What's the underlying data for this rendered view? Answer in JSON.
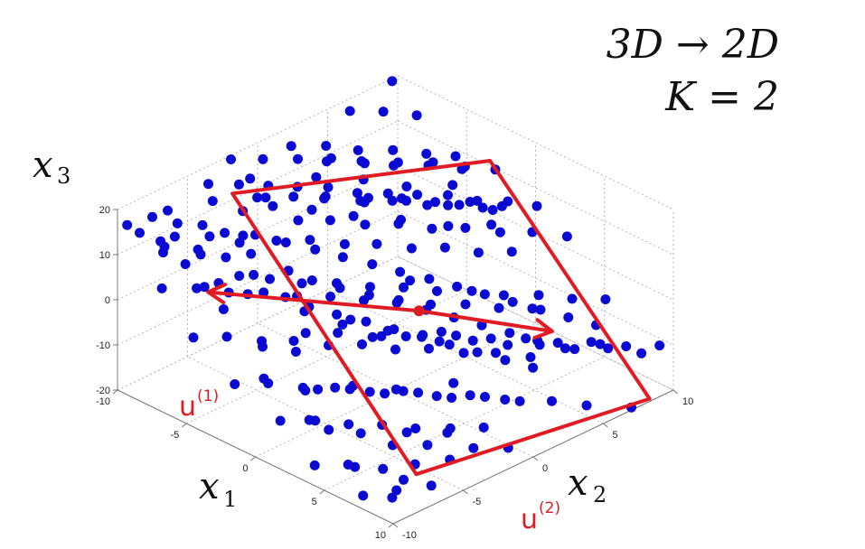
{
  "chart_data": {
    "type": "scatter",
    "title_lines": [
      "3D → 2D",
      "K = 2"
    ],
    "xlabel": {
      "var": "x",
      "sub": "1"
    },
    "ylabel": {
      "var": "x",
      "sub": "2"
    },
    "zlabel": {
      "var": "x",
      "sub": "3"
    },
    "xlim": [
      -10,
      10
    ],
    "ylim": [
      -10,
      10
    ],
    "zlim": [
      -20,
      20
    ],
    "x_ticks": [
      "-10",
      "-5",
      "0",
      "5",
      "10"
    ],
    "y_ticks": [
      "-10",
      "-5",
      "0",
      "5",
      "10"
    ],
    "z_ticks": [
      "-20",
      "-10",
      "0",
      "10",
      "20"
    ],
    "grid": true,
    "point_color": "#0a0ad2",
    "annotation_color": "#e01b24",
    "annotations": {
      "u1": {
        "base": "u",
        "sup": "(1)"
      },
      "u2": {
        "base": "u",
        "sup": "(2)"
      }
    },
    "points": [
      [
        -9.5,
        -9.8,
        17
      ],
      [
        -9.2,
        -8.3,
        17
      ],
      [
        -8.8,
        -9.6,
        16
      ],
      [
        -8.5,
        -7.2,
        15
      ],
      [
        -8.1,
        -8.8,
        14
      ],
      [
        -7.8,
        -6.1,
        14
      ],
      [
        -7.5,
        -9.2,
        13
      ],
      [
        -7.1,
        -5.2,
        12
      ],
      [
        -6.8,
        -7.4,
        12
      ],
      [
        -6.5,
        -8.6,
        11
      ],
      [
        -6.2,
        -3.9,
        11
      ],
      [
        -5.9,
        -6.3,
        10
      ],
      [
        -5.6,
        -4.8,
        9
      ],
      [
        -5.2,
        -2.7,
        9
      ],
      [
        -4.9,
        -7.8,
        8
      ],
      [
        -4.6,
        -5.6,
        7
      ],
      [
        -4.3,
        -1.5,
        7
      ],
      [
        -4.0,
        -3.7,
        6
      ],
      [
        -3.7,
        -6.9,
        6
      ],
      [
        -3.4,
        -0.4,
        5
      ],
      [
        -3.1,
        -2.9,
        4
      ],
      [
        -2.8,
        -5.1,
        4
      ],
      [
        -2.5,
        0.8,
        3
      ],
      [
        -2.2,
        -1.8,
        2
      ],
      [
        -1.9,
        -4.3,
        2
      ],
      [
        -1.6,
        1.9,
        1
      ],
      [
        -1.3,
        -0.6,
        0
      ],
      [
        -1.0,
        -3.2,
        0
      ],
      [
        -0.7,
        3.1,
        -1
      ],
      [
        -0.4,
        0.5,
        -2
      ],
      [
        -0.1,
        -2.0,
        -2
      ],
      [
        0.2,
        4.2,
        -3
      ],
      [
        0.5,
        1.7,
        -4
      ],
      [
        0.8,
        -0.9,
        -4
      ],
      [
        1.1,
        5.3,
        -5
      ],
      [
        1.4,
        2.8,
        -6
      ],
      [
        1.7,
        0.2,
        -6
      ],
      [
        2.0,
        6.4,
        -7
      ],
      [
        2.3,
        3.9,
        -8
      ],
      [
        2.6,
        1.3,
        -8
      ],
      [
        2.9,
        7.5,
        -9
      ],
      [
        3.2,
        5.0,
        -10
      ],
      [
        3.5,
        2.4,
        -10
      ],
      [
        3.8,
        8.6,
        -11
      ],
      [
        4.1,
        6.1,
        -12
      ],
      [
        4.4,
        3.5,
        -12
      ],
      [
        4.7,
        9.7,
        -13
      ],
      [
        5.0,
        7.2,
        -14
      ],
      [
        5.3,
        4.6,
        -14
      ],
      [
        5.6,
        9.1,
        -15
      ],
      [
        -9.0,
        -4.5,
        19
      ],
      [
        -8.2,
        -3.1,
        18
      ],
      [
        -7.4,
        -1.8,
        17
      ],
      [
        -6.6,
        -0.5,
        16
      ],
      [
        -5.8,
        0.9,
        15
      ],
      [
        -5.0,
        2.2,
        13
      ],
      [
        -4.2,
        3.6,
        12
      ],
      [
        -3.4,
        4.9,
        11
      ],
      [
        -2.6,
        6.3,
        10
      ],
      [
        -1.8,
        7.6,
        8
      ],
      [
        -1.0,
        9.0,
        7
      ],
      [
        -8.6,
        -1.4,
        12
      ],
      [
        -7.7,
        0.3,
        11
      ],
      [
        -6.9,
        1.8,
        10
      ],
      [
        -6.0,
        3.4,
        8
      ],
      [
        -5.2,
        4.9,
        7
      ],
      [
        -4.3,
        6.5,
        5
      ],
      [
        -3.5,
        8.0,
        4
      ],
      [
        -2.6,
        9.5,
        2
      ],
      [
        -9.3,
        -6.6,
        10
      ],
      [
        -8.4,
        -5.0,
        9
      ],
      [
        -7.6,
        -3.4,
        8
      ],
      [
        -6.7,
        -1.9,
        6
      ],
      [
        -5.9,
        -0.3,
        5
      ],
      [
        -5.0,
        1.3,
        3
      ],
      [
        -4.2,
        2.8,
        2
      ],
      [
        -3.3,
        4.4,
        0
      ],
      [
        -2.5,
        6.0,
        -1
      ],
      [
        -1.6,
        7.5,
        -3
      ],
      [
        -0.8,
        9.1,
        -4
      ],
      [
        -7.9,
        -8.9,
        4
      ],
      [
        -7.0,
        -7.3,
        3
      ],
      [
        -6.2,
        -5.8,
        1
      ],
      [
        -5.3,
        -4.2,
        0
      ],
      [
        -4.5,
        -2.6,
        -2
      ],
      [
        -3.6,
        -1.1,
        -3
      ],
      [
        -2.8,
        0.5,
        -5
      ],
      [
        -1.9,
        2.1,
        -6
      ],
      [
        -1.1,
        3.6,
        -8
      ],
      [
        -0.2,
        5.2,
        -9
      ],
      [
        0.6,
        6.8,
        -11
      ],
      [
        1.5,
        8.3,
        -12
      ],
      [
        -5.1,
        -9.4,
        -2
      ],
      [
        -4.3,
        -7.8,
        -3
      ],
      [
        -3.4,
        -6.2,
        -5
      ],
      [
        -2.6,
        -4.7,
        -6
      ],
      [
        -1.7,
        -3.1,
        -8
      ],
      [
        -0.9,
        -1.5,
        -9
      ],
      [
        0.0,
        0.0,
        -11
      ],
      [
        0.8,
        1.6,
        -12
      ],
      [
        1.7,
        3.2,
        -14
      ],
      [
        2.5,
        4.7,
        -15
      ],
      [
        3.4,
        6.3,
        -17
      ],
      [
        -1.8,
        -9.7,
        -7
      ],
      [
        -1.0,
        -8.1,
        -8
      ],
      [
        -0.1,
        -6.5,
        -10
      ],
      [
        0.7,
        -5.0,
        -11
      ],
      [
        1.6,
        -3.4,
        -13
      ],
      [
        2.4,
        -1.8,
        -14
      ],
      [
        3.3,
        -0.3,
        -16
      ],
      [
        4.1,
        1.3,
        -17
      ],
      [
        5.0,
        2.9,
        -19
      ],
      [
        0.9,
        -9.1,
        -12
      ],
      [
        1.8,
        -7.5,
        -13
      ],
      [
        2.6,
        -5.9,
        -15
      ],
      [
        3.5,
        -4.4,
        -16
      ],
      [
        4.3,
        -2.8,
        -18
      ],
      [
        5.2,
        -1.2,
        -19
      ],
      [
        6.0,
        0.4,
        -20
      ],
      [
        3.8,
        -9.5,
        -17
      ],
      [
        4.6,
        -7.9,
        -18
      ],
      [
        5.5,
        -6.3,
        -20
      ],
      [
        6.3,
        -4.8,
        -20
      ],
      [
        7.2,
        -3.2,
        -20
      ],
      [
        6.8,
        -9.0,
        -20
      ],
      [
        7.6,
        -7.4,
        -20
      ],
      [
        8.5,
        -5.8,
        -20
      ],
      [
        -9.7,
        -2.2,
        20
      ],
      [
        -8.9,
        -0.7,
        19
      ],
      [
        -8.0,
        0.9,
        18
      ],
      [
        -7.2,
        2.5,
        17
      ],
      [
        -6.3,
        4.0,
        15
      ],
      [
        -5.5,
        5.6,
        14
      ],
      [
        -4.6,
        7.2,
        13
      ],
      [
        -3.8,
        8.7,
        11
      ],
      [
        -9.9,
        2.3,
        16
      ],
      [
        -9.0,
        3.9,
        15
      ],
      [
        -8.2,
        5.4,
        13
      ],
      [
        -7.3,
        7.0,
        12
      ],
      [
        -6.5,
        8.6,
        10
      ],
      [
        -5.6,
        9.8,
        9
      ],
      [
        -9.4,
        6.0,
        19
      ],
      [
        -8.5,
        7.5,
        18
      ],
      [
        -7.7,
        9.1,
        16
      ],
      [
        -9.8,
        9.4,
        20
      ],
      [
        -2.0,
        -7.0,
        12
      ],
      [
        -1.2,
        -5.5,
        10
      ],
      [
        -0.3,
        -3.9,
        9
      ],
      [
        0.5,
        -2.3,
        7
      ],
      [
        1.4,
        -0.8,
        6
      ],
      [
        2.2,
        0.8,
        4
      ],
      [
        3.1,
        2.4,
        3
      ],
      [
        3.9,
        3.9,
        1
      ],
      [
        4.8,
        5.5,
        0
      ],
      [
        5.6,
        7.1,
        -2
      ],
      [
        6.5,
        8.6,
        -3
      ],
      [
        0.3,
        -6.7,
        3
      ],
      [
        1.1,
        -5.2,
        2
      ],
      [
        2.0,
        -3.6,
        0
      ],
      [
        2.8,
        -2.0,
        -1
      ],
      [
        3.7,
        -0.5,
        -3
      ],
      [
        4.5,
        1.1,
        -4
      ],
      [
        5.4,
        2.7,
        -6
      ],
      [
        6.2,
        4.2,
        -7
      ],
      [
        7.1,
        5.8,
        -9
      ],
      [
        7.9,
        7.4,
        -10
      ],
      [
        8.8,
        8.9,
        -12
      ],
      [
        2.6,
        -8.1,
        -4
      ],
      [
        3.4,
        -6.6,
        -5
      ],
      [
        4.3,
        -5.0,
        -7
      ],
      [
        5.1,
        -3.4,
        -8
      ],
      [
        6.0,
        -1.9,
        -10
      ],
      [
        6.8,
        -0.3,
        -11
      ],
      [
        7.7,
        1.3,
        -13
      ],
      [
        8.5,
        2.8,
        -14
      ],
      [
        9.4,
        4.4,
        -16
      ],
      [
        9.8,
        7.2,
        -20
      ],
      [
        -3.7,
        -3.3,
        17
      ],
      [
        -2.9,
        -1.8,
        16
      ],
      [
        -2.0,
        -0.2,
        14
      ],
      [
        -1.2,
        1.4,
        13
      ],
      [
        -0.3,
        2.9,
        11
      ],
      [
        0.5,
        4.5,
        10
      ],
      [
        1.4,
        6.1,
        8
      ],
      [
        2.2,
        7.6,
        7
      ],
      [
        3.1,
        9.2,
        5
      ],
      [
        -6.1,
        1.1,
        20
      ],
      [
        -5.2,
        2.7,
        19
      ],
      [
        -4.4,
        4.2,
        17
      ],
      [
        -3.5,
        5.8,
        16
      ],
      [
        -2.7,
        7.4,
        14
      ],
      [
        -1.8,
        8.9,
        13
      ],
      [
        -0.9,
        -8.6,
        1
      ],
      [
        0.0,
        -7.1,
        -1
      ],
      [
        1.9,
        -8.3,
        -5
      ],
      [
        4.0,
        -8.7,
        -10
      ],
      [
        6.1,
        -6.2,
        -14
      ],
      [
        7.0,
        -4.6,
        -15
      ],
      [
        8.2,
        -2.5,
        -17
      ],
      [
        9.1,
        -0.9,
        -18
      ],
      [
        -7.9,
        -2.6,
        19
      ],
      [
        -6.4,
        -4.6,
        17
      ],
      [
        -4.8,
        -6.4,
        15
      ],
      [
        -3.0,
        -8.2,
        13
      ],
      [
        -8.7,
        2.9,
        10
      ],
      [
        -7.5,
        5.1,
        8
      ],
      [
        -6.1,
        6.8,
        6
      ],
      [
        -4.9,
        8.9,
        5
      ],
      [
        -2.3,
        3.3,
        -4
      ],
      [
        -0.5,
        -8.9,
        -5
      ],
      [
        2.9,
        -9.0,
        -9
      ],
      [
        5.7,
        -8.5,
        -16
      ],
      [
        8.0,
        -8.1,
        -20
      ],
      [
        -9.6,
        -3.6,
        13
      ],
      [
        -8.3,
        -1.1,
        12
      ],
      [
        -6.8,
        1.6,
        10
      ],
      [
        -5.4,
        3.1,
        9
      ],
      [
        -4.7,
        5.4,
        7
      ],
      [
        -3.2,
        6.9,
        6
      ],
      [
        -2.1,
        8.3,
        5
      ],
      [
        -1.4,
        -2.4,
        -4
      ],
      [
        0.2,
        -1.2,
        -6
      ],
      [
        1.0,
        2.3,
        -9
      ],
      [
        1.9,
        -4.9,
        -9
      ],
      [
        2.7,
        -2.6,
        -12
      ],
      [
        3.6,
        0.6,
        -14
      ],
      [
        4.4,
        -6.8,
        -13
      ],
      [
        5.3,
        -4.4,
        -15
      ],
      [
        6.1,
        -2.3,
        -17
      ],
      [
        7.4,
        -6.7,
        -19
      ],
      [
        -8.8,
        -7.6,
        18
      ],
      [
        -7.2,
        -9.4,
        15
      ],
      [
        -6.0,
        -8.0,
        13
      ],
      [
        -4.1,
        -9.6,
        11
      ],
      [
        -2.4,
        -9.9,
        9
      ],
      [
        -9.1,
        0.2,
        7
      ],
      [
        -8.1,
        2.0,
        5
      ],
      [
        -6.8,
        3.7,
        3
      ],
      [
        -5.5,
        5.8,
        1
      ],
      [
        -4.0,
        7.7,
        -1
      ],
      [
        -2.9,
        9.7,
        -2
      ],
      [
        -0.7,
        -5.8,
        5
      ],
      [
        0.9,
        -4.1,
        3
      ],
      [
        2.4,
        -2.9,
        1
      ],
      [
        3.3,
        -1.3,
        -1
      ],
      [
        4.2,
        0.2,
        -2
      ],
      [
        5.0,
        1.9,
        -4
      ],
      [
        5.9,
        3.5,
        -5
      ],
      [
        6.7,
        5.0,
        -7
      ],
      [
        7.5,
        6.6,
        -8
      ],
      [
        8.4,
        8.2,
        -10
      ],
      [
        9.2,
        9.8,
        -11
      ],
      [
        -3.9,
        1.9,
        14
      ],
      [
        -3.0,
        3.4,
        13
      ],
      [
        -2.2,
        5.0,
        11
      ],
      [
        -1.3,
        6.6,
        10
      ],
      [
        -0.5,
        8.1,
        8
      ],
      [
        0.4,
        9.7,
        7
      ]
    ],
    "plane_outline": [
      [
        -9.8,
        -2.0,
        12
      ],
      [
        -3.0,
        9.7,
        12
      ],
      [
        9.8,
        8.5,
        -20
      ],
      [
        7.1,
        -5.5,
        -20
      ]
    ],
    "mean_point": [
      1.0,
      0.7,
      -2
    ],
    "u1_tip": [
      -8.0,
      -5.5,
      -2
    ],
    "u2_tip": [
      1.2,
      10.0,
      -20
    ]
  }
}
